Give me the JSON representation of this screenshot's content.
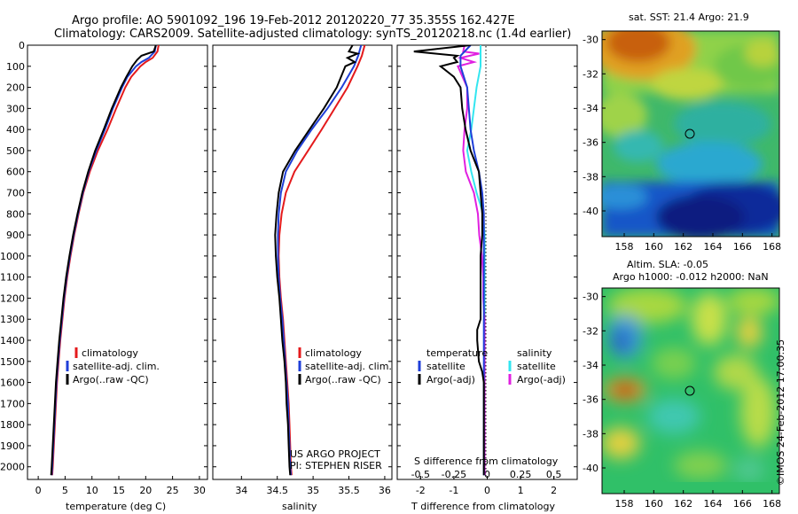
{
  "header": {
    "title_line1": "Argo profile: AO 5901092_196 19-Feb-2012 20120220_77 35.355S 162.427E",
    "title_line2": "Climatology: CARS2009. Satellite-adjusted climatology: synTS_20120218.nc (1.4d earlier)"
  },
  "colors": {
    "climatology": "#e41a1c",
    "satellite": "#1f3fd8",
    "argo": "#000000",
    "salinity_satellite": "#33e6f0",
    "salinity_argo": "#e020e0"
  },
  "depth_axis": {
    "ticks": [
      "0",
      "100",
      "200",
      "300",
      "400",
      "500",
      "600",
      "700",
      "800",
      "900",
      "1000",
      "1100",
      "1200",
      "1300",
      "1400",
      "1500",
      "1600",
      "1700",
      "1800",
      "1900",
      "2000"
    ],
    "range": [
      0,
      2060
    ]
  },
  "panels": {
    "temperature": {
      "xlabel": "temperature (deg C)",
      "xlim": [
        -2,
        31.5
      ],
      "xticks": [
        "0",
        "5",
        "10",
        "15",
        "20",
        "25",
        "30"
      ],
      "legend": [
        "climatology",
        "satellite-adj. clim.",
        "Argo(..raw -QC)"
      ]
    },
    "salinity": {
      "xlabel": "salinity",
      "xlim": [
        33.6,
        36.1
      ],
      "xticks": [
        "34",
        "34.5",
        "35",
        "35.5",
        "36"
      ],
      "legend": [
        "climatology",
        "satellite-adj. clim.",
        "Argo(..raw -QC)"
      ],
      "note_line1": "US ARGO PROJECT",
      "note_line2": "PI: STEPHEN RISER"
    },
    "difference": {
      "xlabel_bottom": "T difference from climatology",
      "xlabel_top": "S difference from climatology",
      "t_ticks": [
        "-2",
        "-1",
        "0",
        "1",
        "2"
      ],
      "s_ticks": [
        "-0.5",
        "-0.25",
        "0",
        "0.25",
        "0.5"
      ],
      "legend_t_title": "temperature",
      "legend_t": [
        "satellite",
        "Argo(-adj)"
      ],
      "legend_s_title": "salinity",
      "legend_s": [
        "satellite",
        "Argo(-adj)"
      ]
    }
  },
  "maps": {
    "sst_title": "sat. SST: 21.4  Argo: 21.9",
    "sla_title_line1": "Altim. SLA: -0.05",
    "sla_title_line2": "Argo h1000: -0.012 h2000: NaN",
    "lat_ticks": [
      "-30",
      "-32",
      "-34",
      "-36",
      "-38",
      "-40"
    ],
    "lon_ticks": [
      "158",
      "160",
      "162",
      "164",
      "166",
      "168"
    ]
  },
  "credit": "©IMOS 24-Feb-2012 17:00:35",
  "chart_data": [
    {
      "type": "line",
      "title": "",
      "xlabel": "temperature (deg C)",
      "ylabel": "",
      "ylim": [
        2060,
        0
      ],
      "xlim": [
        -2,
        31.5
      ],
      "series": [
        {
          "name": "climatology",
          "depth": [
            0,
            30,
            60,
            80,
            100,
            150,
            200,
            300,
            400,
            500,
            600,
            700,
            800,
            900,
            1000,
            1100,
            1200,
            1300,
            1400,
            1500,
            1600,
            1700,
            1800,
            1900,
            2000,
            2040
          ],
          "values": [
            22.4,
            22.2,
            21.3,
            20.0,
            19.0,
            17.3,
            16.2,
            14.5,
            12.9,
            11.1,
            9.6,
            8.4,
            7.5,
            6.7,
            6.0,
            5.4,
            4.9,
            4.5,
            4.1,
            3.8,
            3.5,
            3.3,
            3.1,
            2.9,
            2.7,
            2.6
          ]
        },
        {
          "name": "satellite-adj. clim.",
          "depth": [
            0,
            30,
            60,
            80,
            100,
            150,
            200,
            300,
            400,
            500,
            600,
            700,
            800,
            900,
            1000,
            1100,
            1200,
            1300,
            1400,
            1500,
            1600,
            1700,
            1800,
            1900,
            2000,
            2040
          ],
          "values": [
            21.9,
            21.7,
            20.6,
            19.2,
            18.2,
            16.6,
            15.6,
            13.9,
            12.4,
            10.8,
            9.4,
            8.3,
            7.4,
            6.6,
            5.9,
            5.3,
            4.8,
            4.4,
            4.0,
            3.7,
            3.4,
            3.2,
            3.0,
            2.8,
            2.6,
            2.5
          ]
        },
        {
          "name": "Argo(..raw -QC)",
          "depth": [
            0,
            30,
            50,
            70,
            100,
            150,
            200,
            300,
            400,
            500,
            600,
            700,
            800,
            900,
            1000,
            1100,
            1200,
            1300,
            1400,
            1500,
            1600,
            1700,
            1800,
            1900,
            2000,
            2040
          ],
          "values": [
            21.9,
            21.5,
            19.2,
            18.4,
            17.5,
            16.4,
            15.4,
            13.7,
            12.2,
            10.6,
            9.3,
            8.2,
            7.3,
            6.5,
            5.8,
            5.2,
            4.7,
            4.3,
            3.9,
            3.6,
            3.3,
            3.1,
            2.9,
            2.7,
            2.5,
            2.4
          ]
        }
      ]
    },
    {
      "type": "line",
      "title": "",
      "xlabel": "salinity",
      "ylabel": "",
      "ylim": [
        2060,
        0
      ],
      "xlim": [
        33.6,
        36.1
      ],
      "series": [
        {
          "name": "climatology",
          "depth": [
            0,
            50,
            100,
            200,
            300,
            400,
            500,
            600,
            700,
            800,
            900,
            1000,
            1100,
            1200,
            1300,
            1400,
            1500,
            1600,
            1700,
            1800,
            1900,
            2000,
            2040
          ],
          "values": [
            35.72,
            35.68,
            35.62,
            35.48,
            35.3,
            35.12,
            34.93,
            34.74,
            34.62,
            34.56,
            34.53,
            34.52,
            34.53,
            34.55,
            34.58,
            34.6,
            34.62,
            34.64,
            34.66,
            34.67,
            34.68,
            34.69,
            34.7
          ]
        },
        {
          "name": "satellite-adj. clim.",
          "depth": [
            0,
            50,
            100,
            200,
            300,
            400,
            500,
            600,
            700,
            800,
            900,
            1000,
            1100,
            1200,
            1300,
            1400,
            1500,
            1600,
            1700,
            1800,
            1900,
            2000,
            2040
          ],
          "values": [
            35.67,
            35.63,
            35.57,
            35.4,
            35.2,
            34.98,
            34.78,
            34.62,
            34.55,
            34.52,
            34.51,
            34.51,
            34.52,
            34.54,
            34.57,
            34.59,
            34.61,
            34.63,
            34.65,
            34.66,
            34.67,
            34.68,
            34.69
          ]
        },
        {
          "name": "Argo(..raw -QC)",
          "depth": [
            0,
            30,
            40,
            60,
            80,
            100,
            200,
            300,
            400,
            500,
            600,
            700,
            800,
            900,
            1000,
            1100,
            1200,
            1300,
            1400,
            1500,
            1600,
            1700,
            1800,
            1900,
            2000,
            2040
          ],
          "values": [
            35.55,
            35.5,
            35.62,
            35.48,
            35.58,
            35.45,
            35.33,
            35.15,
            34.95,
            34.75,
            34.58,
            34.52,
            34.49,
            34.47,
            34.48,
            34.5,
            34.53,
            34.55,
            34.57,
            34.6,
            34.62,
            34.63,
            34.65,
            34.66,
            34.67,
            34.68
          ]
        }
      ]
    },
    {
      "type": "line",
      "title": "",
      "xlabel": "T difference from climatology",
      "ylabel": "",
      "ylim": [
        2060,
        0
      ],
      "xlim": [
        -2.7,
        2.7
      ],
      "s_xlim": [
        -0.675,
        0.675
      ],
      "series": [
        {
          "name": "temperature satellite",
          "depth": [
            0,
            50,
            100,
            200,
            300,
            400,
            500,
            600,
            700,
            800,
            900,
            1000,
            1200,
            1400,
            1600,
            1800,
            2000,
            2040
          ],
          "values": [
            -0.5,
            -0.8,
            -0.8,
            -0.6,
            -0.55,
            -0.5,
            -0.4,
            -0.25,
            -0.15,
            -0.1,
            -0.1,
            -0.1,
            -0.1,
            -0.1,
            -0.1,
            -0.1,
            -0.1,
            -0.1
          ]
        },
        {
          "name": "temperature Argo(-adj)",
          "depth": [
            0,
            30,
            50,
            60,
            80,
            100,
            150,
            200,
            300,
            400,
            500,
            600,
            700,
            800,
            900,
            1000,
            1100,
            1200,
            1300,
            1350,
            1400,
            1500,
            1550,
            1600,
            1700,
            1800,
            1900,
            2000,
            2040
          ],
          "values": [
            -0.5,
            -2.2,
            -0.9,
            -1.0,
            -0.9,
            -1.4,
            -1.0,
            -0.8,
            -0.75,
            -0.65,
            -0.5,
            -0.25,
            -0.2,
            -0.15,
            -0.15,
            -0.2,
            -0.2,
            -0.2,
            -0.2,
            -0.3,
            -0.3,
            -0.25,
            -0.15,
            -0.1,
            -0.1,
            -0.1,
            -0.1,
            -0.1,
            -0.1
          ]
        },
        {
          "name": "salinity satellite",
          "depth": [
            0,
            50,
            100,
            200,
            300,
            400,
            500,
            600,
            700,
            800,
            900,
            1000,
            1100,
            1200,
            1300,
            1400,
            1500,
            1600,
            1700,
            1800,
            1900,
            2000,
            2040
          ],
          "values": [
            -0.05,
            -0.05,
            -0.05,
            -0.08,
            -0.1,
            -0.12,
            -0.15,
            -0.12,
            -0.08,
            -0.03,
            -0.02,
            -0.02,
            -0.02,
            -0.02,
            -0.02,
            -0.02,
            -0.02,
            -0.02,
            -0.02,
            -0.02,
            -0.02,
            -0.02,
            -0.02
          ]
        },
        {
          "name": "salinity Argo(-adj)",
          "depth": [
            0,
            30,
            40,
            60,
            80,
            100,
            200,
            300,
            400,
            500,
            600,
            700,
            800,
            900,
            1000,
            1100,
            1200,
            1300,
            1400,
            1500,
            1600,
            1700,
            1800,
            1900,
            2000,
            2040
          ],
          "values": [
            -0.17,
            -0.18,
            -0.06,
            -0.2,
            -0.1,
            -0.22,
            -0.15,
            -0.15,
            -0.17,
            -0.18,
            -0.16,
            -0.1,
            -0.07,
            -0.06,
            -0.04,
            -0.03,
            -0.03,
            -0.02,
            -0.02,
            -0.02,
            -0.02,
            -0.02,
            -0.02,
            -0.02,
            -0.02,
            -0.02
          ]
        }
      ]
    },
    {
      "type": "heatmap",
      "title": "sat. SST: 21.4  Argo: 21.9",
      "xlim": [
        156.5,
        168.5
      ],
      "ylim": [
        -41.5,
        -29.5
      ],
      "profile_position": [
        162.427,
        -35.355
      ]
    },
    {
      "type": "heatmap",
      "title": "Altim. SLA: -0.05",
      "xlim": [
        156.5,
        168.5
      ],
      "ylim": [
        -41.5,
        -29.5
      ],
      "profile_position": [
        162.427,
        -35.355
      ]
    }
  ]
}
